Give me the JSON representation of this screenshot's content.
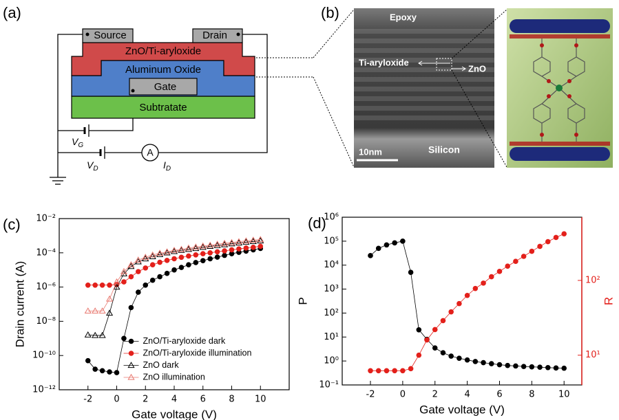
{
  "diagram": {
    "label": "(a)",
    "source": "Source",
    "drain": "Drain",
    "semiconductor": "ZnO/Ti-aryloxide",
    "dielectric": "Aluminum Oxide",
    "gate": "Gate",
    "substrate": "Subtratate",
    "vg": {
      "symbol": "V",
      "subscript": "G"
    },
    "vd": {
      "symbol": "V",
      "subscript": "D"
    },
    "id": {
      "symbol": "I",
      "subscript": "D"
    },
    "ammeter": "A"
  },
  "micrograph": {
    "label": "(b)",
    "top": "Epoxy",
    "left_label": "Ti-aryloxide",
    "right_label": "ZnO",
    "scale_bar": "10nm",
    "bottom": "Silicon"
  },
  "chart_data": [
    {
      "type": "line",
      "panel_label": "(c)",
      "xlabel": "Gate voltage (V)",
      "ylabel": "Drain current (A)",
      "x": [
        -2,
        -1.5,
        -1,
        -0.5,
        0,
        0.5,
        1,
        1.5,
        2,
        2.5,
        3,
        3.5,
        4,
        4.5,
        5,
        5.5,
        6,
        6.5,
        7,
        7.5,
        8,
        8.5,
        9,
        9.5,
        10
      ],
      "xlim": [
        -4,
        12
      ],
      "xticks": [
        -2,
        0,
        2,
        4,
        6,
        8,
        10
      ],
      "ylog": true,
      "ylim": [
        1e-12,
        0.01
      ],
      "yticks": [
        {
          "value": 1e-12,
          "label": "10⁻¹²"
        },
        {
          "value": 1e-10,
          "label": "10⁻¹⁰"
        },
        {
          "value": 1e-08,
          "label": "10⁻⁸"
        },
        {
          "value": 1e-06,
          "label": "10⁻⁶"
        },
        {
          "value": 0.0001,
          "label": "10⁻⁴"
        },
        {
          "value": 0.01,
          "label": "10⁻²"
        }
      ],
      "legend": "lower right",
      "series": [
        {
          "name": "ZnO/Ti-aryloxide dark",
          "color": "#000000",
          "marker": "circle",
          "filled": true,
          "values": [
            5e-11,
            1.6e-11,
            1.3e-11,
            1.1e-11,
            1e-11,
            1e-09,
            6.3e-08,
            5e-07,
            1.3e-06,
            2.5e-06,
            4e-06,
            6.3e-06,
            1e-05,
            1.4e-05,
            2e-05,
            2.7e-05,
            3.5e-05,
            4.5e-05,
            5.6e-05,
            7.1e-05,
            8.9e-05,
            0.000107,
            0.000126,
            0.00015,
            0.00018
          ]
        },
        {
          "name": "ZnO/Ti-aryloxide illumination",
          "color": "#e3201b",
          "marker": "circle",
          "filled": true,
          "values": [
            1.3e-06,
            1.3e-06,
            1.3e-06,
            1.3e-06,
            1.4e-06,
            2e-06,
            4e-06,
            8e-06,
            1.3e-05,
            2e-05,
            2.8e-05,
            3.6e-05,
            4.5e-05,
            5.5e-05,
            6.5e-05,
            7.6e-05,
            8.9e-05,
            0.0001,
            0.000115,
            0.00013,
            0.00015,
            0.00017,
            0.00019,
            0.00021,
            0.00024
          ]
        },
        {
          "name": "ZnO dark",
          "color": "#000000",
          "marker": "triangle",
          "filled": false,
          "values": [
            1.6e-09,
            1.5e-09,
            1.5e-09,
            3e-08,
            1e-06,
            6e-06,
            1.6e-05,
            3e-05,
            4.5e-05,
            6e-05,
            8e-05,
            0.0001,
            0.00012,
            0.00014,
            0.00016,
            0.00018,
            0.00021,
            0.00024,
            0.00027,
            0.0003,
            0.00034,
            0.00038,
            0.00042,
            0.00046,
            0.0005
          ]
        },
        {
          "name": "ZnO illumination",
          "color": "#e8786f",
          "marker": "triangle",
          "filled": false,
          "values": [
            4e-08,
            4e-08,
            4e-08,
            2e-07,
            2e-06,
            8e-06,
            2e-05,
            3.8e-05,
            5.5e-05,
            7.5e-05,
            9.5e-05,
            0.000115,
            0.00014,
            0.00016,
            0.00019,
            0.00022,
            0.00025,
            0.00028,
            0.00032,
            0.00036,
            0.0004,
            0.00045,
            0.0005,
            0.00055,
            0.0006
          ]
        }
      ]
    },
    {
      "type": "line",
      "panel_label": "(d)",
      "xlabel": "Gate voltage (V)",
      "ylabel": "P",
      "y2label": "R",
      "x": [
        -2,
        -1.5,
        -1,
        -0.5,
        0,
        0.5,
        1,
        1.5,
        2,
        2.5,
        3,
        3.5,
        4,
        4.5,
        5,
        5.5,
        6,
        6.5,
        7,
        7.5,
        8,
        8.5,
        9,
        9.5,
        10
      ],
      "xlim": [
        -3.75,
        11.1
      ],
      "xticks": [
        -2,
        0,
        2,
        4,
        6,
        8,
        10
      ],
      "ylog": true,
      "ylim": [
        0.1,
        1000000.0
      ],
      "yticks": [
        {
          "value": 0.1,
          "label": "10⁻¹"
        },
        {
          "value": 1,
          "label": "10⁰"
        },
        {
          "value": 10,
          "label": "10¹"
        },
        {
          "value": 100,
          "label": "10²"
        },
        {
          "value": 1000,
          "label": "10³"
        },
        {
          "value": 10000,
          "label": "10⁴"
        },
        {
          "value": 100000,
          "label": "10⁵"
        },
        {
          "value": 1000000,
          "label": "10⁶"
        }
      ],
      "y2log": true,
      "y2lim": [
        4,
        700
      ],
      "y2ticks": [
        {
          "value": 10,
          "label": "10¹"
        },
        {
          "value": 100,
          "label": "10²"
        }
      ],
      "series": [
        {
          "name": "P",
          "color": "#000000",
          "marker": "circle",
          "filled": true,
          "values": [
            25000.0,
            50000.0,
            70000.0,
            85000.0,
            100000.0,
            5000.0,
            20,
            8,
            3.5,
            2.2,
            1.6,
            1.3,
            1.1,
            0.95,
            0.85,
            0.77,
            0.7,
            0.65,
            0.62,
            0.59,
            0.57,
            0.55,
            0.53,
            0.51,
            0.5
          ]
        },
        {
          "name": "R",
          "color": "#e3201b",
          "marker": "circle",
          "filled": true,
          "axis": "y2",
          "values": [
            6.2,
            6.2,
            6.2,
            6.2,
            6.2,
            6.6,
            10,
            16,
            22,
            29,
            38,
            49,
            63,
            78,
            92,
            112,
            132,
            155,
            180,
            210,
            245,
            285,
            330,
            375,
            420
          ]
        }
      ]
    }
  ]
}
